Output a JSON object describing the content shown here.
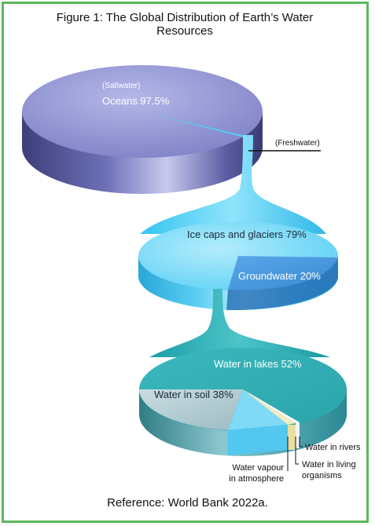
{
  "title": "Figure 1: The Global Distribution of Earth’s Water Resources",
  "reference": "Reference: World Bank 2022a.",
  "labels": {
    "saltwater": "(Saltwater)",
    "oceans": "Oceans 97.5%",
    "freshwater": "(Freshwater)",
    "ice_caps": "Ice caps and glaciers 79%",
    "groundwater": "Groundwater 20%",
    "lakes": "Water in lakes 52%",
    "soil": "Water in soil 38%",
    "rivers": "Water in rivers",
    "living_1": "Water in living",
    "living_2": "organisms",
    "vapour_1": "Water vapour",
    "vapour_2": "in atmosphere"
  },
  "chart_data": [
    {
      "type": "pie",
      "slices": [
        {
          "label": "Oceans",
          "value": 97.5,
          "group": "Saltwater"
        },
        {
          "label": "Freshwater",
          "value": 2.5
        }
      ]
    },
    {
      "type": "pie",
      "slices": [
        {
          "label": "Ice caps and glaciers",
          "value": 79
        },
        {
          "label": "Groundwater",
          "value": 20
        }
      ]
    },
    {
      "type": "pie",
      "slices": [
        {
          "label": "Water in lakes",
          "value": 52
        },
        {
          "label": "Water in soil",
          "value": 38
        },
        {
          "label": "Water vapour in atmosphere"
        },
        {
          "label": "Water in living organisms"
        },
        {
          "label": "Water in rivers"
        }
      ]
    }
  ],
  "colors": {
    "border": "#5cb85c",
    "oceans": "#8c8fd0",
    "freshwater": "#4fd0f5",
    "ice": "#5ad2f5",
    "groundwater": "#4a9fe0",
    "lakes": "#3fb2b6",
    "soil": "#a9c4cc",
    "vapour": "#6fd4f6"
  }
}
